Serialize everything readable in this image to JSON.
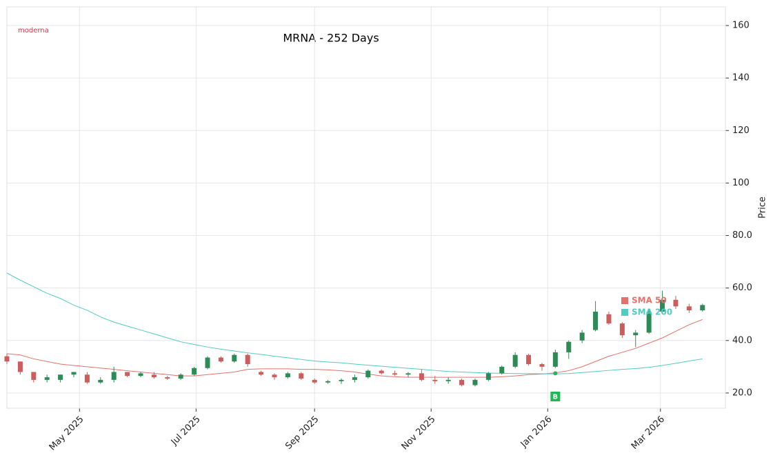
{
  "chart_data": {
    "type": "candlestick",
    "title": "MRNA - 252 Days",
    "logo": "moderna",
    "y_label": "Price",
    "xlim": [
      "2025-03-24",
      "2026-04-04"
    ],
    "xticks": [
      {
        "value": "2025-05-01",
        "label": "May 2025"
      },
      {
        "value": "2025-07-01",
        "label": "Jul 2025"
      },
      {
        "value": "2025-09-01",
        "label": "Sep 2025"
      },
      {
        "value": "2025-11-01",
        "label": "Nov 2025"
      },
      {
        "value": "2026-01-01",
        "label": "Jan 2026"
      },
      {
        "value": "2026-03-01",
        "label": "Mar 2026"
      }
    ],
    "ylim": [
      14.2,
      167.1
    ],
    "yticks": [
      {
        "value": 20,
        "label": "20.0"
      },
      {
        "value": 40,
        "label": "40.0"
      },
      {
        "value": 60,
        "label": "60.0"
      },
      {
        "value": 80,
        "label": "80.0"
      },
      100,
      120,
      140,
      160
    ],
    "grid": true,
    "up_color": "#2e8b57",
    "down_color": "#cd5c5c",
    "x": [
      "2025-03-24",
      "2025-03-31",
      "2025-04-07",
      "2025-04-14",
      "2025-04-21",
      "2025-04-28",
      "2025-05-05",
      "2025-05-12",
      "2025-05-19",
      "2025-05-26",
      "2025-06-02",
      "2025-06-09",
      "2025-06-16",
      "2025-06-23",
      "2025-06-30",
      "2025-07-07",
      "2025-07-14",
      "2025-07-21",
      "2025-07-28",
      "2025-08-04",
      "2025-08-11",
      "2025-08-18",
      "2025-08-25",
      "2025-09-01",
      "2025-09-08",
      "2025-09-15",
      "2025-09-22",
      "2025-09-29",
      "2025-10-06",
      "2025-10-13",
      "2025-10-20",
      "2025-10-27",
      "2025-11-03",
      "2025-11-10",
      "2025-11-17",
      "2025-11-24",
      "2025-12-01",
      "2025-12-08",
      "2025-12-15",
      "2025-12-22",
      "2025-12-29",
      "2026-01-05",
      "2026-01-12",
      "2026-01-19",
      "2026-01-26",
      "2026-02-02",
      "2026-02-09",
      "2026-02-16",
      "2026-02-23",
      "2026-03-02",
      "2026-03-09",
      "2026-03-16",
      "2026-03-23"
    ],
    "open": [
      34,
      32,
      28,
      25,
      25,
      27,
      27,
      24,
      25,
      28,
      26.5,
      27,
      26,
      25.5,
      27,
      29.5,
      33.5,
      32,
      34.5,
      28,
      27,
      26,
      27.5,
      25,
      24,
      24.5,
      25,
      26,
      28.5,
      27.5,
      27,
      27.5,
      25,
      24.5,
      25,
      23,
      25,
      27.5,
      30,
      34.5,
      31,
      30,
      35.5,
      40,
      44,
      50,
      46.5,
      42,
      43,
      51,
      55.5,
      53,
      51.5
    ],
    "high": [
      35,
      32,
      28,
      27,
      27,
      28,
      28,
      26,
      30,
      28,
      28,
      28,
      26.5,
      27.5,
      30,
      34,
      34,
      35,
      35,
      28.5,
      27.5,
      28,
      28,
      25.5,
      25,
      25.5,
      27,
      29,
      29,
      28.5,
      28,
      29,
      26.5,
      26,
      25.5,
      25.5,
      28,
      30.5,
      35.5,
      35,
      31.5,
      36.5,
      40,
      44,
      55,
      51,
      47,
      44,
      52,
      59,
      57,
      54,
      54
    ],
    "low": [
      31,
      27,
      24,
      24,
      24,
      26,
      23.5,
      23.5,
      24,
      26,
      26,
      25.5,
      25,
      25,
      26.5,
      29,
      31.5,
      31.5,
      30,
      26.5,
      25,
      25.5,
      25,
      23.5,
      23.5,
      23.5,
      24,
      25.5,
      27,
      26.5,
      26,
      24.5,
      23.5,
      23.5,
      22.5,
      22.5,
      24.5,
      27,
      29.5,
      30.5,
      28.5,
      29.5,
      33,
      39,
      43.5,
      46,
      41,
      37.5,
      42.5,
      50,
      52,
      50.5,
      51
    ],
    "close": [
      32,
      28,
      25,
      26,
      27,
      28,
      24,
      25,
      28,
      26.5,
      27.5,
      26,
      25.5,
      27,
      29.5,
      33.5,
      32,
      34.5,
      31,
      27,
      26,
      27.5,
      25.5,
      24,
      24.5,
      25,
      26,
      28.5,
      27.5,
      27,
      27.5,
      25,
      24.5,
      25,
      23,
      25,
      27.5,
      30,
      34.5,
      31,
      30,
      35.5,
      39.5,
      43,
      51,
      46.5,
      42,
      43,
      51,
      55.5,
      53,
      51.5,
      53.5
    ],
    "series": [
      {
        "name": "SMA 50",
        "color": "#e8706a",
        "values": [
          35,
          34.5,
          33,
          32,
          31,
          30.5,
          30,
          29.5,
          29,
          28.5,
          28,
          27.5,
          27,
          26.5,
          26.5,
          27,
          27.5,
          28,
          29,
          29.2,
          29.2,
          29.2,
          29,
          29,
          28.8,
          28.5,
          28,
          27.2,
          26.5,
          26.2,
          26,
          26,
          26,
          26,
          26,
          26,
          26,
          26.2,
          26.5,
          27,
          27.2,
          27.7,
          28.5,
          30,
          32,
          34,
          35.5,
          37,
          39,
          41,
          43.5,
          46,
          48
        ]
      },
      {
        "name": "SMA 200",
        "color": "#4ecdc4",
        "values": [
          65.7,
          63,
          60.5,
          58,
          56,
          53.5,
          51.5,
          49,
          47,
          45.5,
          44,
          42.5,
          41,
          39.5,
          38.5,
          37.5,
          36.7,
          36,
          35.3,
          34.7,
          34,
          33.4,
          32.8,
          32.2,
          31.8,
          31.5,
          31,
          30.6,
          30.2,
          29.8,
          29.4,
          29,
          28.6,
          28.2,
          28,
          27.8,
          27.6,
          27.5,
          27.4,
          27.4,
          27.3,
          27.3,
          27.4,
          27.8,
          28.2,
          28.6,
          29,
          29.3,
          29.8,
          30.5,
          31.3,
          32.2,
          33
        ]
      }
    ],
    "signals": [
      {
        "x": "2026-01-05",
        "value": 27.5,
        "label": "B",
        "color": "#1db954"
      }
    ]
  }
}
